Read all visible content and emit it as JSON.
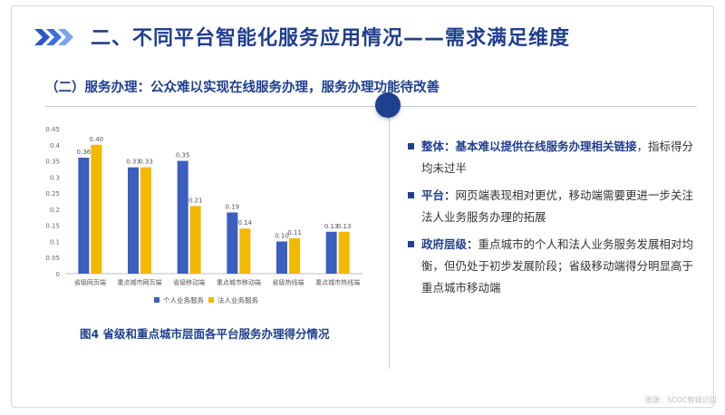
{
  "header": {
    "title": "二、不同平台智能化服务应用情况——需求满足维度",
    "subtitle": "（二）服务办理：公众难以实现在线服务办理，服务办理功能待改善"
  },
  "colors": {
    "brand": "#1f3f8f",
    "series1": "#3b5fbe",
    "series2": "#f5b800"
  },
  "chart_data": {
    "type": "bar",
    "categories": [
      "省级网页端",
      "重点城市网页端",
      "省级移动端",
      "重点城市移动端",
      "省级热线端",
      "重点城市热线端"
    ],
    "series": [
      {
        "name": "个人业务服务",
        "values": [
          0.36,
          0.33,
          0.35,
          0.19,
          0.1,
          0.13
        ]
      },
      {
        "name": "法人业务服务",
        "values": [
          0.4,
          0.33,
          0.21,
          0.14,
          0.11,
          0.13
        ]
      }
    ],
    "value_labels": [
      [
        "0.36",
        "0.33",
        "0.35",
        "0.19",
        "0.10",
        "0.13"
      ],
      [
        "0.40",
        "0.33",
        "0.21",
        "0.14",
        "0.11",
        "0.13"
      ]
    ],
    "ylim": [
      0,
      0.45
    ],
    "yticks": [
      "0",
      "0.05",
      "0.1",
      "0.15",
      "0.2",
      "0.25",
      "0.3",
      "0.35",
      "0.4",
      "0.45"
    ],
    "legend_position": "bottom",
    "grid": false,
    "caption": "图4 省级和重点城市层面各平台服务办理得分情况"
  },
  "bullets": [
    {
      "head": "整体：基本难以提供在线服务办理相关链接",
      "body": "，指标得分均未过半"
    },
    {
      "head": "平台：",
      "body": "网页端表现相对更优，移动端需要更进一步关注法人业务服务办理的拓展"
    },
    {
      "head": "政府层级：",
      "body": "重点城市的个人和法人业务服务发展相对均衡，但仍处于初步发展阶段；省级移动端得分明显高于重点城市移动端"
    }
  ],
  "watermark": "图源：SCOC智城识别"
}
